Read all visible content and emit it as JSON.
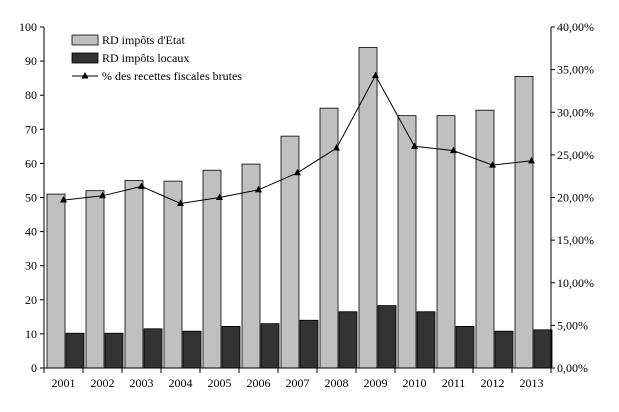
{
  "chart_data": {
    "type": "bar",
    "categories": [
      "2001",
      "2002",
      "2003",
      "2004",
      "2005",
      "2006",
      "2007",
      "2008",
      "2009",
      "2010",
      "2011",
      "2012",
      "2013"
    ],
    "series": [
      {
        "name": "RD impôts d'Etat",
        "type": "bar",
        "axis": "left",
        "color": "#c0c0c0",
        "values": [
          51,
          52,
          55,
          54.8,
          58,
          59.8,
          68,
          76.2,
          94,
          74,
          74,
          75.6,
          85.5
        ]
      },
      {
        "name": "RD impôts locaux",
        "type": "bar",
        "axis": "left",
        "color": "#333333",
        "values": [
          10.2,
          10.2,
          11.5,
          10.8,
          12.2,
          13,
          14,
          16.5,
          18.3,
          16.5,
          12.2,
          10.8,
          11.2
        ]
      },
      {
        "name": "% des recettes fiscales brutes",
        "type": "line",
        "axis": "right",
        "color": "#000000",
        "marker": "triangle",
        "values": [
          19.7,
          20.2,
          21.3,
          19.3,
          20.0,
          20.9,
          22.9,
          25.8,
          34.3,
          26.0,
          25.5,
          23.8,
          24.3
        ]
      }
    ],
    "y_left": {
      "range": [
        0,
        100
      ],
      "ticks": [
        "0",
        "10",
        "20",
        "30",
        "40",
        "50",
        "60",
        "70",
        "80",
        "90",
        "100"
      ]
    },
    "y_right": {
      "range": [
        0,
        40
      ],
      "ticks": [
        "0,00%",
        "5,00%",
        "10,00%",
        "15,00%",
        "20,00%",
        "25,00%",
        "30,00%",
        "35,00%",
        "40,00%"
      ]
    },
    "legend_position": "top-left",
    "grid": false
  }
}
